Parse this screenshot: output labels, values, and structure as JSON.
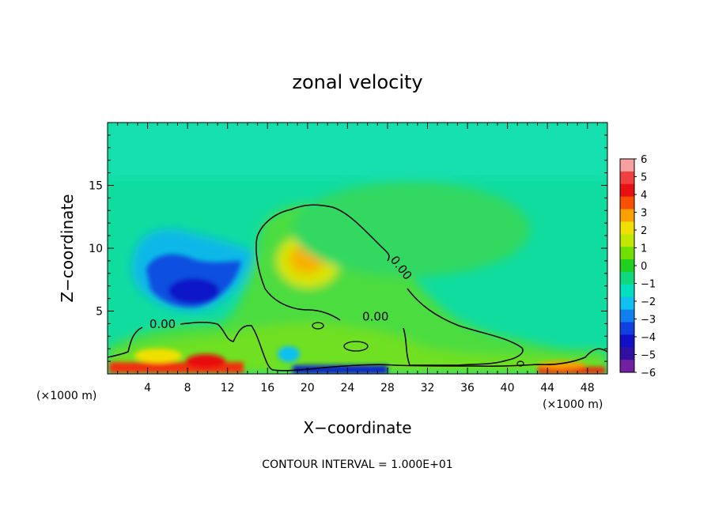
{
  "chart_data": {
    "type": "heatmap",
    "title": "zonal velocity",
    "xlabel": "X−coordinate",
    "ylabel": "Z−coordinate",
    "x_unit_left": "(×1000 m)",
    "x_unit_right": "(×1000 m)",
    "xlim": [
      0,
      50
    ],
    "ylim": [
      0,
      20
    ],
    "xticks": [
      4,
      8,
      12,
      16,
      20,
      24,
      28,
      32,
      36,
      40,
      44,
      48
    ],
    "yticks": [
      5,
      10,
      15
    ],
    "contour_interval_text": "CONTOUR INTERVAL = 1.000E+01",
    "contour_labels": [
      {
        "text": "0.00",
        "x": 5.5,
        "z": 3.9
      },
      {
        "text": "0.00",
        "x": 26.8,
        "z": 4.5
      },
      {
        "text": "0.00",
        "x": 29.3,
        "z": 8.4
      }
    ],
    "colorbar": {
      "ticks": [
        "6",
        "5",
        "4",
        "3",
        "2",
        "1",
        "0",
        "−1",
        "−2",
        "−3",
        "−4",
        "−5",
        "−6"
      ],
      "colors": [
        "#f7a0a0",
        "#f04040",
        "#e81010",
        "#f85000",
        "#fca000",
        "#f0e000",
        "#c0e800",
        "#70e000",
        "#20d020",
        "#10d880",
        "#00e0c0",
        "#10c0f0",
        "#1080f0",
        "#1040e0",
        "#1010c8",
        "#3010a0",
        "#7020a0"
      ]
    },
    "field_features": [
      {
        "name": "background",
        "value": -0.8
      },
      {
        "name": "negative core",
        "x": 9,
        "z": 7,
        "value": -5
      },
      {
        "name": "positive core",
        "x": 20,
        "z": 9.5,
        "value": 3
      }
    ]
  }
}
